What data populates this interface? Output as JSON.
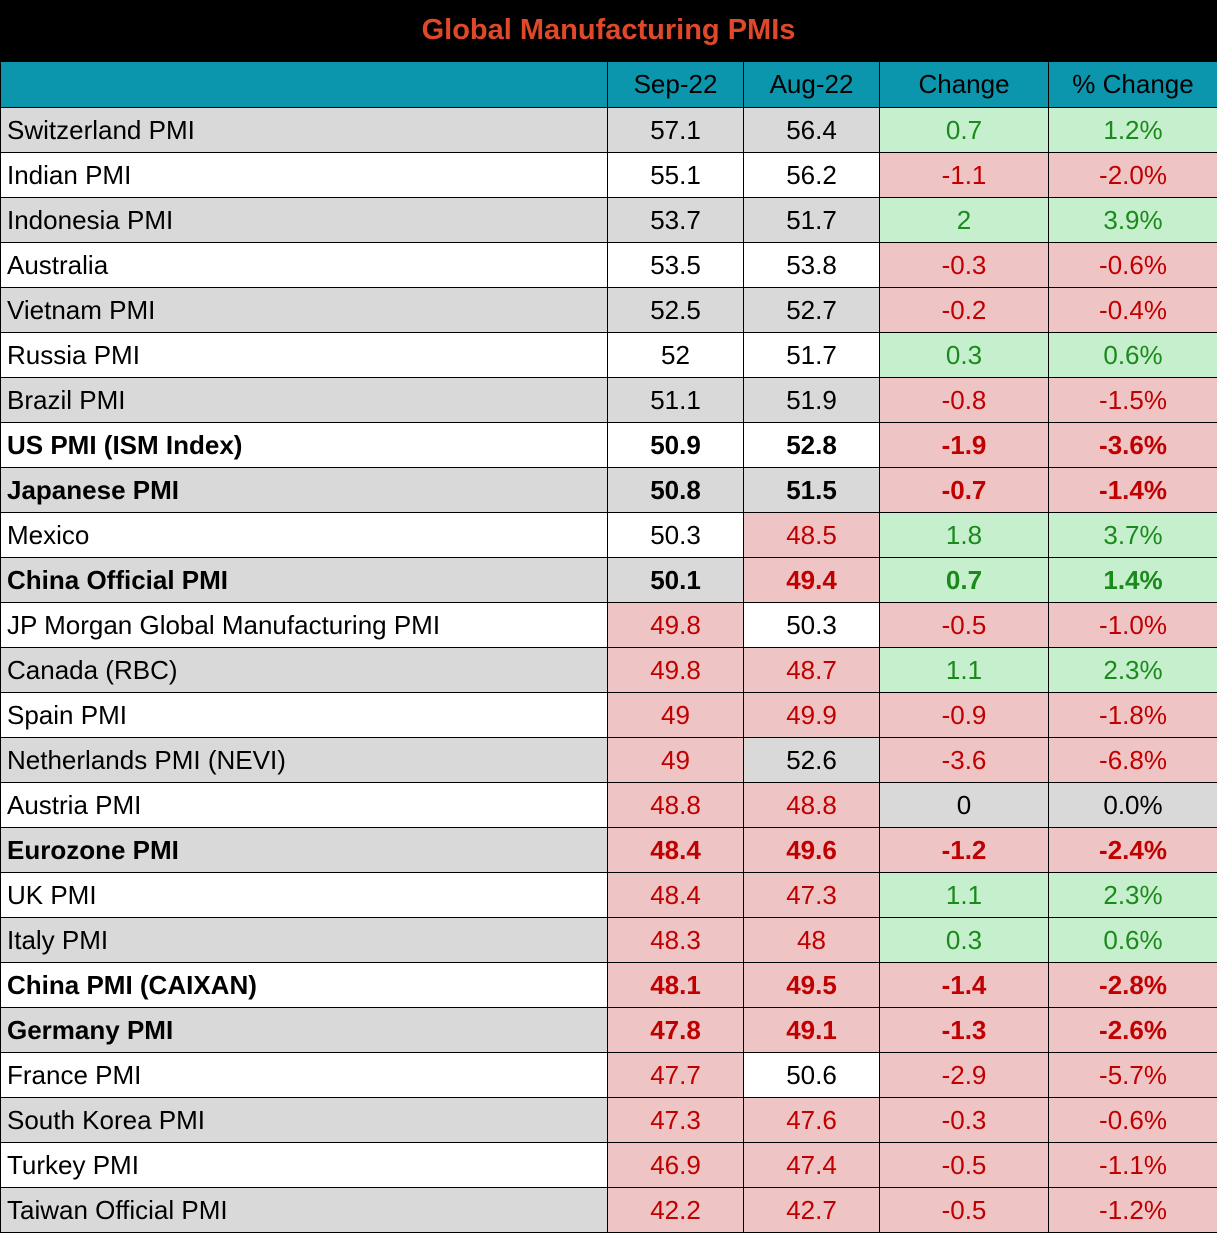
{
  "title": "Global Manufacturing PMIs",
  "colors": {
    "title_bg": "#000000",
    "title_text": "#e0482a",
    "header_bg": "#0b96ad",
    "row_alt": "#d9d9d9",
    "up_bg": "#c6efce",
    "up_text": "#1a8a1a",
    "down_bg": "#efc4c4",
    "down_text": "#c00000"
  },
  "chart_data": {
    "type": "table",
    "title": "Global Manufacturing PMIs",
    "columns": [
      "",
      "Sep-22",
      "Aug-22",
      "Change",
      "% Change"
    ],
    "rows": [
      {
        "name": "Switzerland PMI",
        "sep": "57.1",
        "aug": "56.4",
        "change": "0.7",
        "pct": "1.2%",
        "bold": false
      },
      {
        "name": "Indian PMI",
        "sep": "55.1",
        "aug": "56.2",
        "change": "-1.1",
        "pct": "-2.0%",
        "bold": false
      },
      {
        "name": "Indonesia PMI",
        "sep": "53.7",
        "aug": "51.7",
        "change": "2",
        "pct": "3.9%",
        "bold": false
      },
      {
        "name": "Australia",
        "sep": "53.5",
        "aug": "53.8",
        "change": "-0.3",
        "pct": "-0.6%",
        "bold": false
      },
      {
        "name": "Vietnam PMI",
        "sep": "52.5",
        "aug": "52.7",
        "change": "-0.2",
        "pct": "-0.4%",
        "bold": false
      },
      {
        "name": "Russia PMI",
        "sep": "52",
        "aug": "51.7",
        "change": "0.3",
        "pct": "0.6%",
        "bold": false
      },
      {
        "name": "Brazil PMI",
        "sep": "51.1",
        "aug": "51.9",
        "change": "-0.8",
        "pct": "-1.5%",
        "bold": false
      },
      {
        "name": "US PMI (ISM Index)",
        "sep": "50.9",
        "aug": "52.8",
        "change": "-1.9",
        "pct": "-3.6%",
        "bold": true
      },
      {
        "name": "Japanese PMI",
        "sep": "50.8",
        "aug": "51.5",
        "change": "-0.7",
        "pct": "-1.4%",
        "bold": true
      },
      {
        "name": "Mexico",
        "sep": "50.3",
        "aug": "48.5",
        "change": "1.8",
        "pct": "3.7%",
        "bold": false
      },
      {
        "name": "China Official PMI",
        "sep": "50.1",
        "aug": "49.4",
        "change": "0.7",
        "pct": "1.4%",
        "bold": true
      },
      {
        "name": "JP Morgan Global Manufacturing PMI",
        "sep": "49.8",
        "aug": "50.3",
        "change": "-0.5",
        "pct": "-1.0%",
        "bold": false
      },
      {
        "name": "Canada (RBC)",
        "sep": "49.8",
        "aug": "48.7",
        "change": "1.1",
        "pct": "2.3%",
        "bold": false
      },
      {
        "name": "Spain PMI",
        "sep": "49",
        "aug": "49.9",
        "change": "-0.9",
        "pct": "-1.8%",
        "bold": false
      },
      {
        "name": "Netherlands PMI (NEVI)",
        "sep": "49",
        "aug": "52.6",
        "change": "-3.6",
        "pct": "-6.8%",
        "bold": false
      },
      {
        "name": "Austria PMI",
        "sep": "48.8",
        "aug": "48.8",
        "change": "0",
        "pct": "0.0%",
        "bold": false
      },
      {
        "name": "Eurozone PMI",
        "sep": "48.4",
        "aug": "49.6",
        "change": "-1.2",
        "pct": "-2.4%",
        "bold": true
      },
      {
        "name": "UK PMI",
        "sep": "48.4",
        "aug": "47.3",
        "change": "1.1",
        "pct": "2.3%",
        "bold": false
      },
      {
        "name": "Italy PMI",
        "sep": "48.3",
        "aug": "48",
        "change": "0.3",
        "pct": "0.6%",
        "bold": false
      },
      {
        "name": "China PMI (CAIXAN)",
        "sep": "48.1",
        "aug": "49.5",
        "change": "-1.4",
        "pct": "-2.8%",
        "bold": true
      },
      {
        "name": "Germany PMI",
        "sep": "47.8",
        "aug": "49.1",
        "change": "-1.3",
        "pct": "-2.6%",
        "bold": true
      },
      {
        "name": "France PMI",
        "sep": "47.7",
        "aug": "50.6",
        "change": "-2.9",
        "pct": "-5.7%",
        "bold": false
      },
      {
        "name": "South Korea PMI",
        "sep": "47.3",
        "aug": "47.6",
        "change": "-0.3",
        "pct": "-0.6%",
        "bold": false
      },
      {
        "name": "Turkey PMI",
        "sep": "46.9",
        "aug": "47.4",
        "change": "-0.5",
        "pct": "-1.1%",
        "bold": false
      },
      {
        "name": "Taiwan Official PMI",
        "sep": "42.2",
        "aug": "42.7",
        "change": "-0.5",
        "pct": "-1.2%",
        "bold": false
      }
    ]
  }
}
